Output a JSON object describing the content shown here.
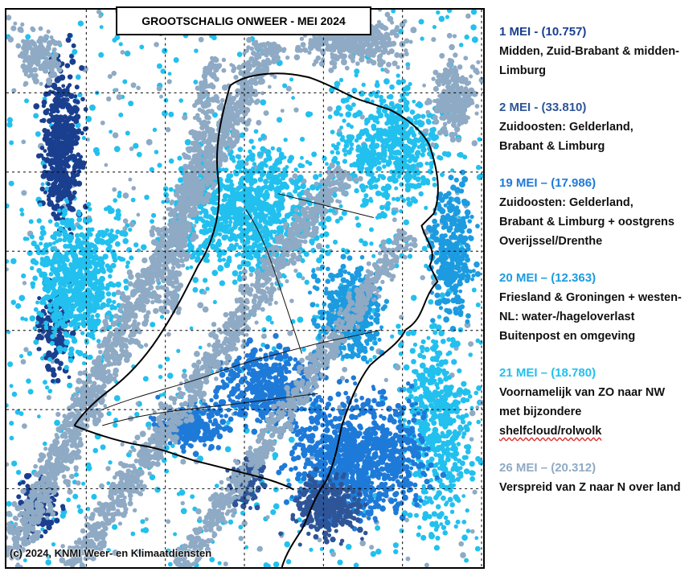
{
  "map": {
    "title": "GROOTSCHALIG ONWEER - MEI 2024",
    "copyright": "(c) 2024, KNMI Weer- en Klimaatdiensten",
    "region": "Netherlands",
    "grid": "on"
  },
  "legend": [
    {
      "date": "1 MEI - (10.757)",
      "description": "Midden, Zuid-Brabant & midden-\nLimburg",
      "color": "#1a3f8f",
      "squiggle": ""
    },
    {
      "date": "2 MEI - (33.810)",
      "description": "Zuidoosten: Gelderland,\nBrabant & Limburg",
      "color": "#2e5597",
      "squiggle": ""
    },
    {
      "date": "19 MEI – (17.986)",
      "description": "Zuidoosten: Gelderland,\nBrabant & Limburg + oostgrens\nOverijssel/Drenthe",
      "color": "#1e7ad8",
      "squiggle": ""
    },
    {
      "date": "20 MEI – (12.363)",
      "description": "Friesland & Groningen + westen-\nNL: water-/hageloverlast\nBuitenpost en omgeving",
      "color": "#1c9be0",
      "squiggle": ""
    },
    {
      "date": "21 MEI – (18.780)",
      "description": "Voornamelijk van ZO naar NW\nmet bijzondere\n",
      "color": "#22c0ee",
      "squiggle": "shelfcloud/rolwolk"
    },
    {
      "date": "26 MEI – (20.312)",
      "description": "Verspreid van Z naar N over land",
      "color": "#8faac4",
      "squiggle": ""
    }
  ]
}
